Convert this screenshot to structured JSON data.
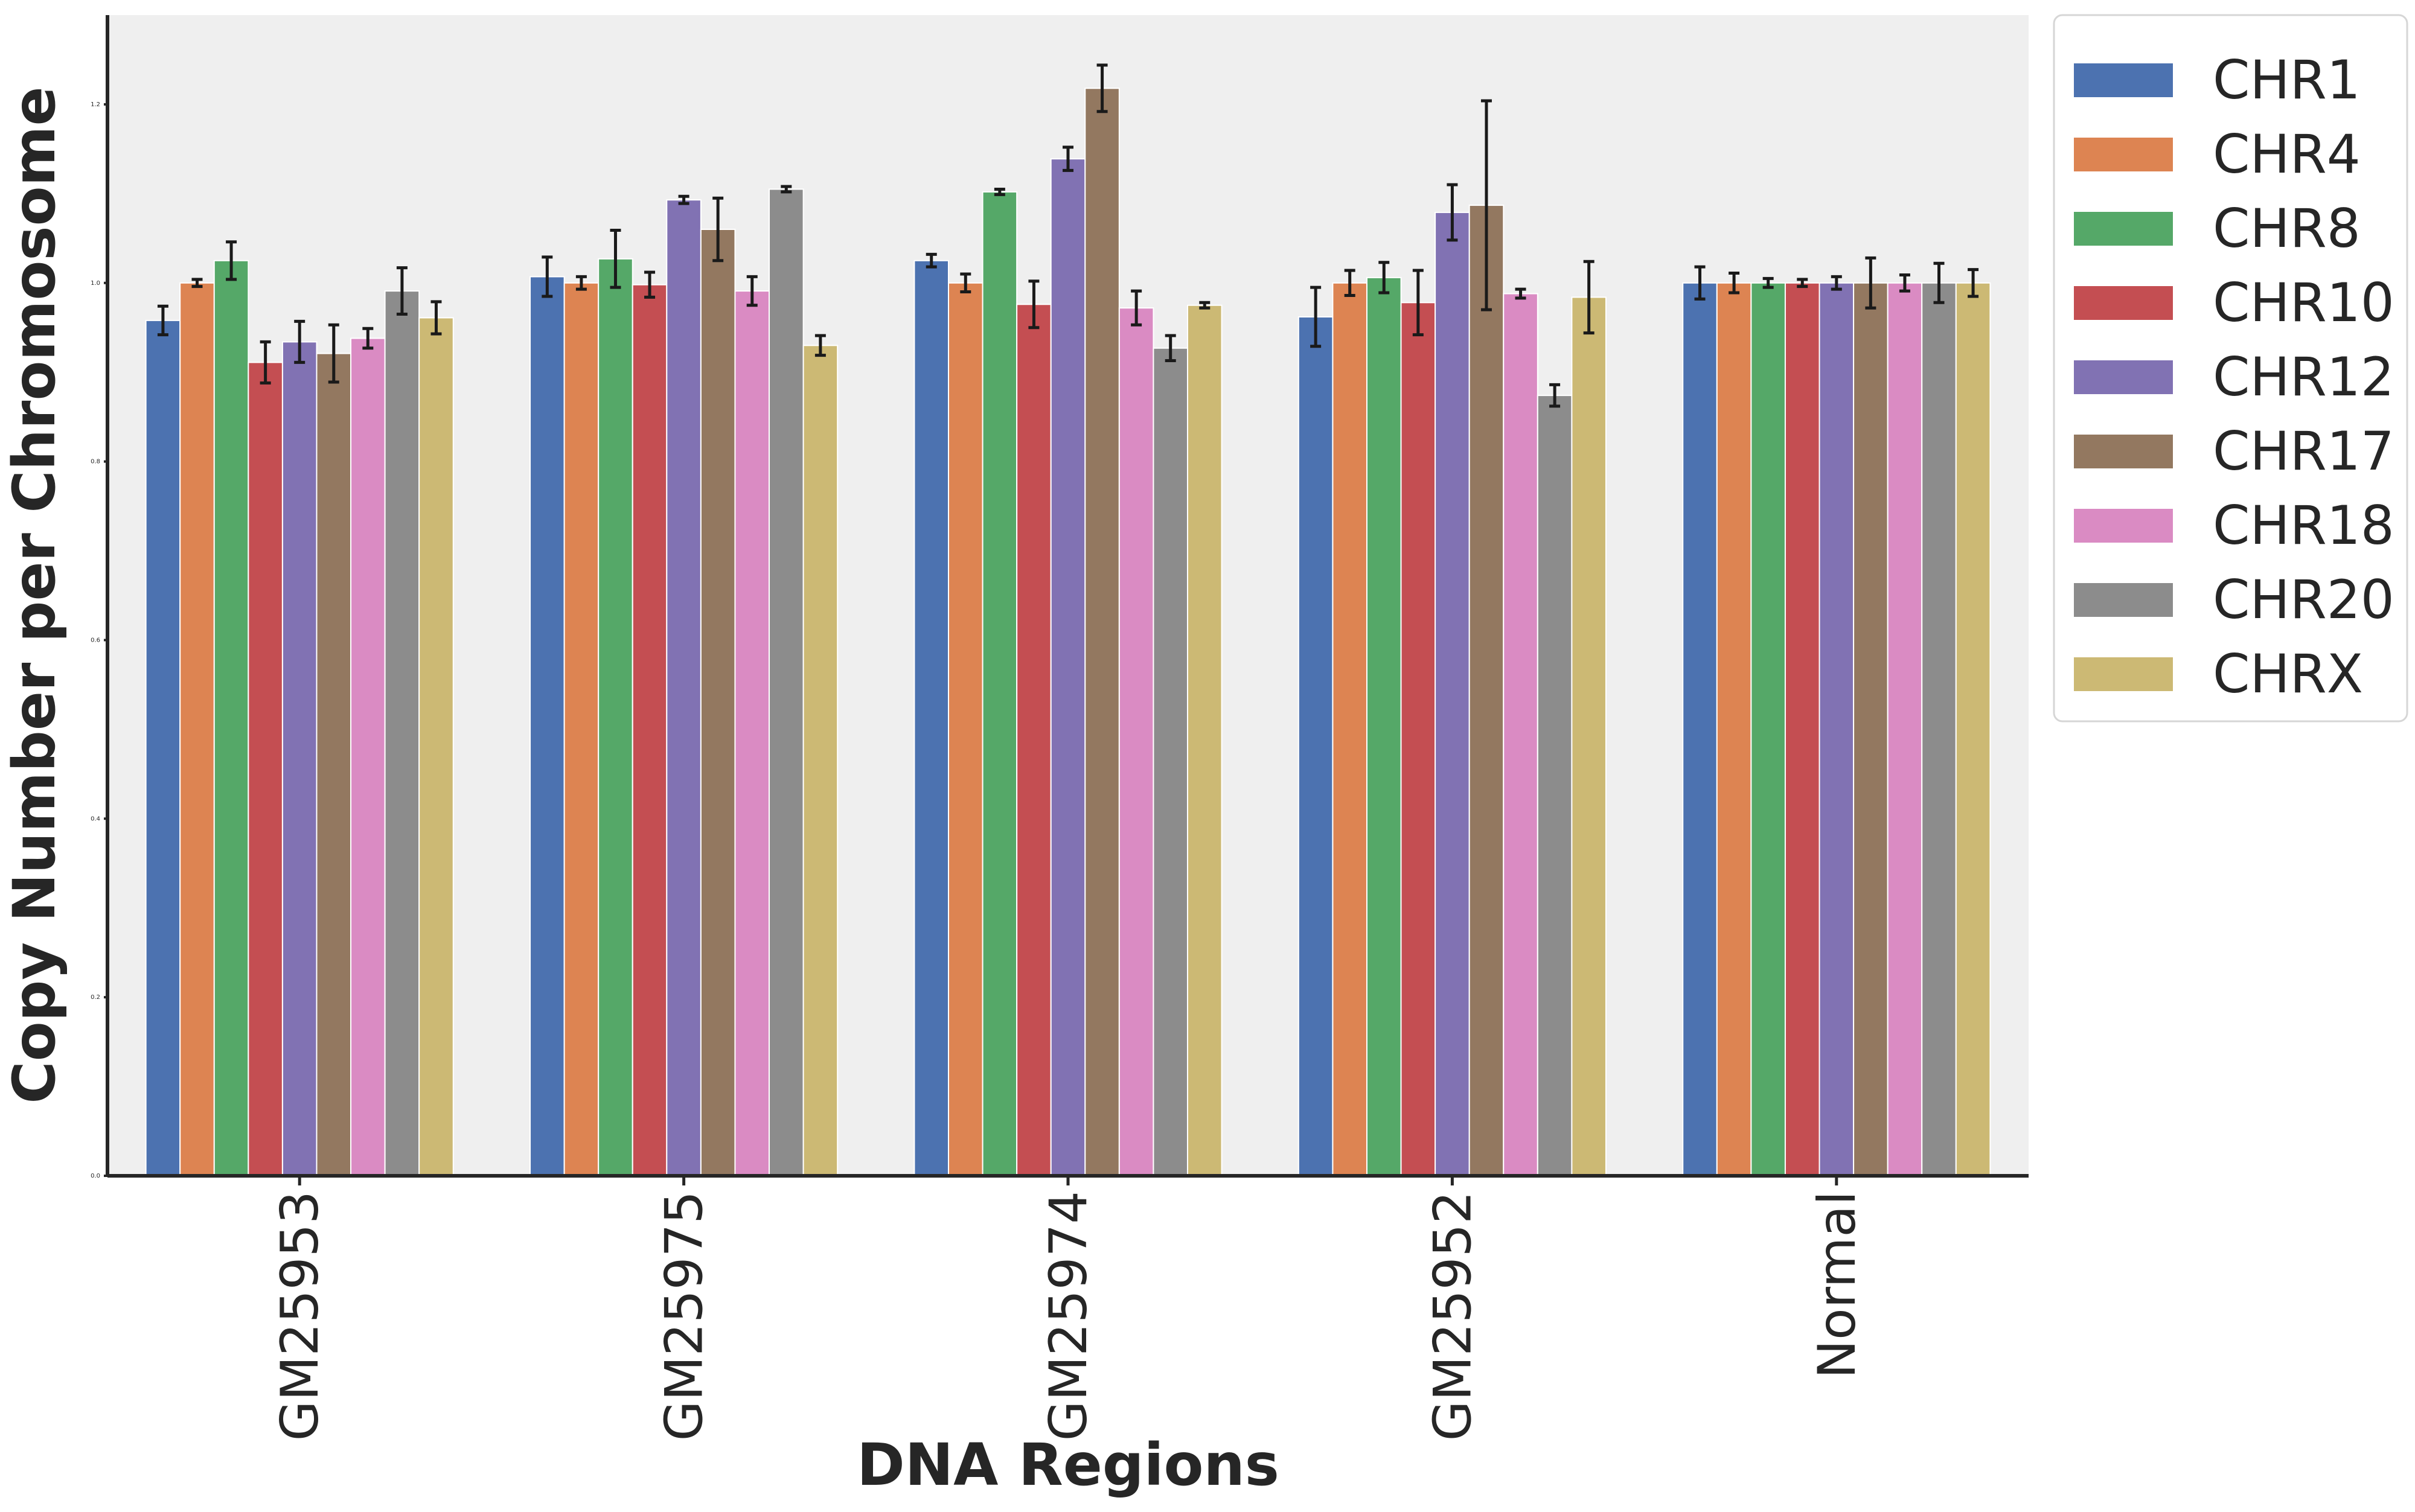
{
  "chart_data": {
    "type": "bar",
    "xlabel": "DNA Regions",
    "ylabel": "Copy Number per Chromosome",
    "ylim": [
      0,
      1.3
    ],
    "yticks": [
      "0.0",
      "0.2",
      "0.4",
      "0.6",
      "0.8",
      "1.0",
      "1.2"
    ],
    "categories": [
      "GM25953",
      "GM25975",
      "GM25974",
      "GM25952",
      "Normal"
    ],
    "legend_position": "upper-right-outside",
    "series": [
      {
        "name": "CHR1",
        "color": "#4c72b0",
        "values": [
          0.958,
          1.007,
          1.025,
          0.962,
          1.0
        ],
        "errors": [
          0.016,
          0.022,
          0.007,
          0.033,
          0.018
        ]
      },
      {
        "name": "CHR4",
        "color": "#dd8452",
        "values": [
          1.0,
          1.0,
          1.0,
          1.0,
          1.0
        ],
        "errors": [
          0.004,
          0.007,
          0.01,
          0.014,
          0.011
        ]
      },
      {
        "name": "CHR8",
        "color": "#55a868",
        "values": [
          1.025,
          1.027,
          1.102,
          1.006,
          1.0
        ],
        "errors": [
          0.021,
          0.032,
          0.003,
          0.017,
          0.005
        ]
      },
      {
        "name": "CHR10",
        "color": "#c44e52",
        "values": [
          0.911,
          0.998,
          0.976,
          0.978,
          1.0
        ],
        "errors": [
          0.023,
          0.014,
          0.026,
          0.036,
          0.004
        ]
      },
      {
        "name": "CHR12",
        "color": "#8172b3",
        "values": [
          0.934,
          1.093,
          1.139,
          1.079,
          1.0
        ],
        "errors": [
          0.023,
          0.004,
          0.013,
          0.031,
          0.007
        ]
      },
      {
        "name": "CHR17",
        "color": "#937860",
        "values": [
          0.921,
          1.06,
          1.218,
          1.087,
          1.0
        ],
        "errors": [
          0.032,
          0.035,
          0.026,
          0.117,
          0.028
        ]
      },
      {
        "name": "CHR18",
        "color": "#da8bc3",
        "values": [
          0.938,
          0.991,
          0.972,
          0.988,
          1.0
        ],
        "errors": [
          0.011,
          0.016,
          0.019,
          0.005,
          0.009
        ]
      },
      {
        "name": "CHR20",
        "color": "#8c8c8c",
        "values": [
          0.991,
          1.105,
          0.927,
          0.874,
          1.0
        ],
        "errors": [
          0.026,
          0.003,
          0.014,
          0.012,
          0.022
        ]
      },
      {
        "name": "CHRX",
        "color": "#ccb974",
        "values": [
          0.961,
          0.93,
          0.975,
          0.984,
          1.0
        ],
        "errors": [
          0.018,
          0.011,
          0.003,
          0.04,
          0.015
        ]
      }
    ]
  }
}
